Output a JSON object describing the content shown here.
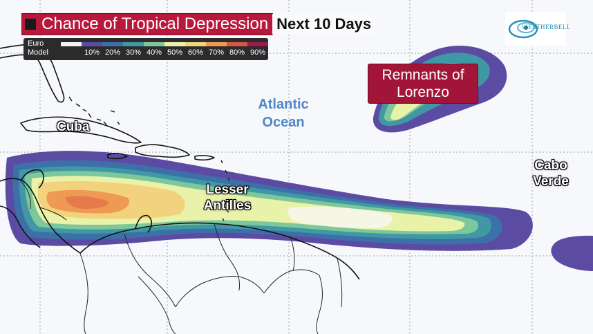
{
  "title": {
    "main": "Chance of Tropical Depression",
    "sub": "Next 10 Days"
  },
  "legend": {
    "model": "Euro\nModel",
    "colors": [
      "#f4f4f4",
      "#5b4ba3",
      "#3d6fa9",
      "#3f98a3",
      "#7cc79c",
      "#e8f2a8",
      "#f3d27e",
      "#ef9a54",
      "#d35845",
      "#9b1b4b"
    ],
    "ticks": [
      "",
      "10%",
      "20%",
      "30%",
      "40%",
      "50%",
      "60%",
      "70%",
      "80%",
      "90%"
    ]
  },
  "logo": {
    "text": "WEATHERBELL",
    "icon": "weatherbell-swirl-logo"
  },
  "labels": {
    "remnants": "Remnants of Lorenzo",
    "atlantic": "Atlantic Ocean",
    "cuba": "Cuba",
    "antilles": "Lesser Antilles",
    "cabo": "Cabo Verde"
  },
  "colors": {
    "background": "#f7f8fb",
    "title_accent": "#b8183c",
    "ocean_label": "#4f86c6",
    "grid": "#9aa0a8"
  }
}
